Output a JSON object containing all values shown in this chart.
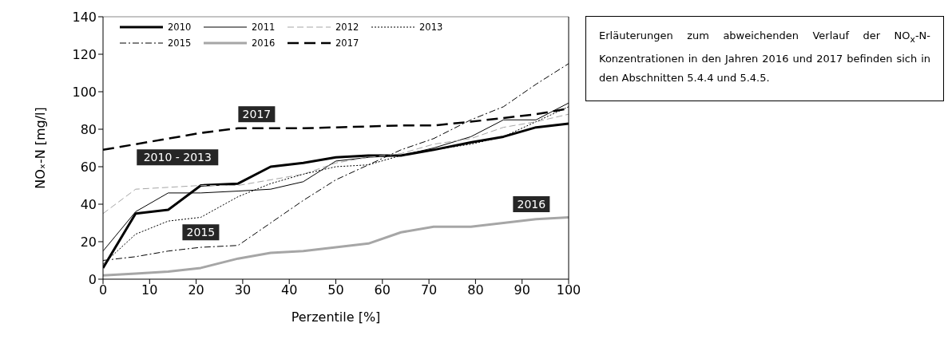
{
  "chart_data": {
    "type": "line",
    "xlabel": "Perzentile [%]",
    "ylabel": "NOₓ-N [mg/l]",
    "x": [
      0,
      7,
      14,
      21,
      29,
      36,
      43,
      50,
      57,
      64,
      71,
      79,
      86,
      93,
      100
    ],
    "series": [
      {
        "name": "2010",
        "color": "#000000",
        "line_style": "solid",
        "values": [
          6,
          35,
          37,
          50,
          51,
          60,
          62,
          65,
          66,
          66,
          69,
          73,
          76,
          81,
          83
        ]
      },
      {
        "name": "2011",
        "color": "#000000",
        "line_style": "solid",
        "values": [
          15,
          36,
          46,
          46,
          47,
          48,
          52,
          63,
          65,
          66,
          70,
          76,
          85,
          85,
          94
        ]
      },
      {
        "name": "2012",
        "color": "#a6a6a6",
        "line_style": "dashed",
        "values": [
          35,
          48,
          49,
          50,
          50,
          53,
          56,
          62,
          65,
          67,
          72,
          75,
          81,
          84,
          88
        ]
      },
      {
        "name": "2013",
        "color": "#000000",
        "line_style": "dotted",
        "values": [
          8,
          24,
          31,
          33,
          44,
          51,
          56,
          60,
          61,
          66,
          69,
          72,
          76,
          84,
          92
        ]
      },
      {
        "name": "2015",
        "color": "#000000",
        "line_style": "dashdot",
        "values": [
          10,
          12,
          15,
          17,
          18,
          30,
          42,
          53,
          61,
          69,
          75,
          85,
          92,
          104,
          115
        ]
      },
      {
        "name": "2016",
        "color": "#a6a6a6",
        "line_style": "solid",
        "values": [
          2,
          3,
          4,
          6,
          11,
          14,
          15,
          17,
          19,
          25,
          28,
          28,
          30,
          32,
          33
        ]
      },
      {
        "name": "2017",
        "color": "#000000",
        "line_style": "dashed",
        "values": [
          69,
          72,
          75,
          78,
          80.5,
          80.5,
          80.5,
          81,
          81.5,
          82,
          82,
          84,
          86,
          88,
          91
        ]
      }
    ],
    "xlim": [
      0,
      100
    ],
    "xticks": [
      0,
      10,
      20,
      30,
      40,
      50,
      60,
      70,
      80,
      90,
      100
    ],
    "ylim": [
      0,
      140
    ],
    "yticks": [
      0,
      20,
      40,
      60,
      80,
      100,
      120,
      140
    ],
    "grid": false,
    "legend": "top left",
    "marker": "none",
    "annotations": [
      "2017",
      "2010 - 2013",
      "2015",
      "2016",
      "Erläuterungen zum abweichenden Verlauf der NO$_{x}$-N-Konzentrationen in den Jahren 2016 und 2017 befinden sich in den Abschnitten 5.4.4 und 5.4.5."
    ]
  }
}
